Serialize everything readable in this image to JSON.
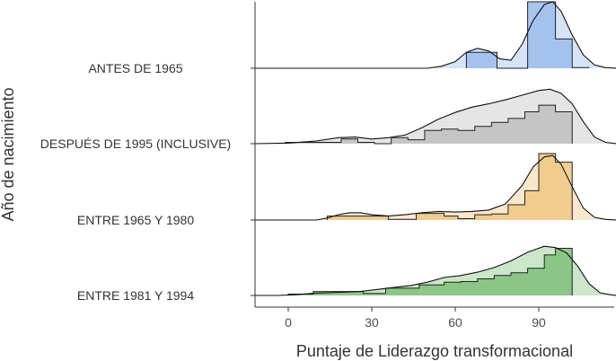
{
  "chart_data": {
    "type": "ridgeline",
    "xlabel": "Puntaje de Liderazgo transformacional",
    "ylabel": "Año de nacimiento",
    "xlim": [
      -12,
      118
    ],
    "x_ticks": [
      0,
      30,
      60,
      90
    ],
    "grid": false,
    "groups": [
      {
        "name": "ANTES DE 1965",
        "color": "#9bbcec",
        "density": [
          [
            -12,
            0
          ],
          [
            50,
            0
          ],
          [
            55,
            0.03
          ],
          [
            60,
            0.1
          ],
          [
            64,
            0.24
          ],
          [
            68,
            0.3
          ],
          [
            72,
            0.26
          ],
          [
            76,
            0.14
          ],
          [
            80,
            0.12
          ],
          [
            84,
            0.36
          ],
          [
            88,
            0.72
          ],
          [
            92,
            0.96
          ],
          [
            95,
            1.0
          ],
          [
            98,
            0.86
          ],
          [
            102,
            0.5
          ],
          [
            106,
            0.2
          ],
          [
            110,
            0.05
          ],
          [
            114,
            0.01
          ],
          [
            118,
            0
          ]
        ],
        "histogram": [
          [
            64,
            75,
            0.24
          ],
          [
            75,
            86,
            0
          ],
          [
            86,
            96,
            1.0
          ],
          [
            96,
            102,
            0.44
          ],
          [
            102,
            108,
            0.01
          ]
        ]
      },
      {
        "name": "DESPUÉS DE 1995 (INCLUSIVE)",
        "color": "#bfbfbf",
        "density": [
          [
            -12,
            0
          ],
          [
            0,
            0.01
          ],
          [
            10,
            0.04
          ],
          [
            18,
            0.09
          ],
          [
            24,
            0.1
          ],
          [
            30,
            0.07
          ],
          [
            36,
            0.09
          ],
          [
            42,
            0.13
          ],
          [
            48,
            0.24
          ],
          [
            54,
            0.37
          ],
          [
            60,
            0.47
          ],
          [
            66,
            0.55
          ],
          [
            72,
            0.6
          ],
          [
            78,
            0.66
          ],
          [
            84,
            0.73
          ],
          [
            90,
            0.8
          ],
          [
            94,
            0.82
          ],
          [
            98,
            0.76
          ],
          [
            102,
            0.6
          ],
          [
            106,
            0.33
          ],
          [
            110,
            0.1
          ],
          [
            114,
            0.02
          ],
          [
            118,
            0
          ]
        ],
        "histogram": [
          [
            -1,
            19,
            0.02
          ],
          [
            19,
            25,
            0.07
          ],
          [
            25,
            31,
            0.02
          ],
          [
            31,
            37,
            0
          ],
          [
            37,
            43,
            0.09
          ],
          [
            43,
            49,
            0.06
          ],
          [
            49,
            55,
            0.2
          ],
          [
            55,
            61,
            0.22
          ],
          [
            61,
            67,
            0.2
          ],
          [
            67,
            73,
            0.26
          ],
          [
            73,
            79,
            0.32
          ],
          [
            79,
            85,
            0.38
          ],
          [
            85,
            90,
            0.48
          ],
          [
            90,
            96,
            0.58
          ],
          [
            96,
            102,
            0.48
          ]
        ]
      },
      {
        "name": "ENTRE 1965 Y 1980",
        "color": "#eec784",
        "density": [
          [
            -12,
            0
          ],
          [
            10,
            0
          ],
          [
            14,
            0.03
          ],
          [
            18,
            0.08
          ],
          [
            22,
            0.11
          ],
          [
            26,
            0.11
          ],
          [
            30,
            0.08
          ],
          [
            36,
            0.06
          ],
          [
            42,
            0.08
          ],
          [
            48,
            0.11
          ],
          [
            54,
            0.13
          ],
          [
            60,
            0.12
          ],
          [
            66,
            0.13
          ],
          [
            72,
            0.15
          ],
          [
            78,
            0.24
          ],
          [
            84,
            0.52
          ],
          [
            88,
            0.8
          ],
          [
            92,
            0.95
          ],
          [
            95,
            0.97
          ],
          [
            98,
            0.84
          ],
          [
            102,
            0.5
          ],
          [
            106,
            0.18
          ],
          [
            110,
            0.04
          ],
          [
            114,
            0.01
          ],
          [
            118,
            0
          ]
        ],
        "histogram": [
          [
            14,
            36,
            0.06
          ],
          [
            36,
            46,
            0.01
          ],
          [
            46,
            56,
            0.1
          ],
          [
            56,
            61,
            0.06
          ],
          [
            61,
            67,
            0.02
          ],
          [
            67,
            73,
            0.08
          ],
          [
            73,
            79,
            0.09
          ],
          [
            79,
            85,
            0.23
          ],
          [
            85,
            90,
            0.44
          ],
          [
            90,
            96,
            1.0
          ],
          [
            96,
            102,
            0.87
          ]
        ]
      },
      {
        "name": "ENTRE 1981 Y 1994",
        "color": "#7fc07a",
        "density": [
          [
            -12,
            0
          ],
          [
            -4,
            0
          ],
          [
            2,
            0.01
          ],
          [
            8,
            0.03
          ],
          [
            14,
            0.04
          ],
          [
            20,
            0.05
          ],
          [
            26,
            0.06
          ],
          [
            32,
            0.09
          ],
          [
            38,
            0.12
          ],
          [
            44,
            0.15
          ],
          [
            50,
            0.2
          ],
          [
            56,
            0.27
          ],
          [
            62,
            0.3
          ],
          [
            68,
            0.35
          ],
          [
            74,
            0.42
          ],
          [
            80,
            0.52
          ],
          [
            86,
            0.65
          ],
          [
            92,
            0.74
          ],
          [
            96,
            0.72
          ],
          [
            100,
            0.64
          ],
          [
            104,
            0.44
          ],
          [
            108,
            0.18
          ],
          [
            112,
            0.04
          ],
          [
            116,
            0.01
          ],
          [
            118,
            0
          ]
        ],
        "histogram": [
          [
            0,
            9,
            0.02
          ],
          [
            9,
            27,
            0.06
          ],
          [
            27,
            35,
            0.03
          ],
          [
            35,
            47,
            0.11
          ],
          [
            47,
            56,
            0.16
          ],
          [
            56,
            62,
            0.2
          ],
          [
            62,
            68,
            0.21
          ],
          [
            68,
            74,
            0.25
          ],
          [
            74,
            80,
            0.3
          ],
          [
            80,
            86,
            0.34
          ],
          [
            86,
            92,
            0.41
          ],
          [
            92,
            96,
            0.61
          ],
          [
            96,
            102,
            0.71
          ]
        ]
      }
    ]
  }
}
